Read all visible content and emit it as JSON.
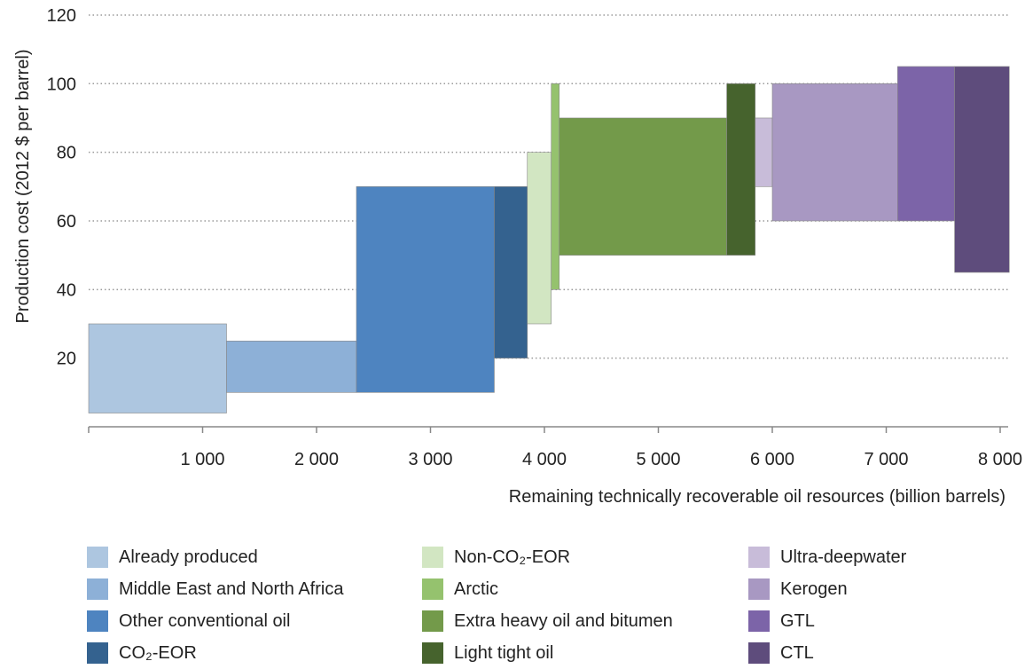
{
  "chart_data": {
    "type": "bar",
    "subtype": "supply-cost-curve",
    "title": "",
    "xlabel": "Remaining technically recoverable oil resources (billion barrels)",
    "ylabel": "Production cost  (2012 $ per barrel)",
    "xlim": [
      0,
      8100
    ],
    "ylim": [
      0,
      120
    ],
    "x_ticks": [
      {
        "value": 1000,
        "label": "1 000"
      },
      {
        "value": 2000,
        "label": "2 000"
      },
      {
        "value": 3000,
        "label": "3 000"
      },
      {
        "value": 4000,
        "label": "4 000"
      },
      {
        "value": 5000,
        "label": "5 000"
      },
      {
        "value": 6000,
        "label": "6 000"
      },
      {
        "value": 7000,
        "label": "7 000"
      },
      {
        "value": 8000,
        "label": "8 000"
      }
    ],
    "y_ticks": [
      {
        "value": 20,
        "label": "20"
      },
      {
        "value": 40,
        "label": "40"
      },
      {
        "value": 60,
        "label": "60"
      },
      {
        "value": 80,
        "label": "80"
      },
      {
        "value": 100,
        "label": "100"
      },
      {
        "value": 120,
        "label": "120"
      }
    ],
    "grid": "horizontal-dotted",
    "legend_position": "bottom",
    "series": [
      {
        "name": "Already produced",
        "color": "#adc6e0",
        "x_start": 0,
        "x_end": 1210,
        "y_low": 4,
        "y_high": 30
      },
      {
        "name": "Middle East and North Africa",
        "color": "#8db0d7",
        "x_start": 1210,
        "x_end": 2350,
        "y_low": 10,
        "y_high": 25
      },
      {
        "name": "Other conventional oil",
        "color": "#4e84c0",
        "x_start": 2350,
        "x_end": 3560,
        "y_low": 10,
        "y_high": 70
      },
      {
        "name": "CO₂-EOR",
        "color": "#34628f",
        "x_start": 3560,
        "x_end": 3850,
        "y_low": 20,
        "y_high": 70
      },
      {
        "name": "Non-CO₂-EOR",
        "color": "#d2e6c2",
        "x_start": 3850,
        "x_end": 4060,
        "y_low": 30,
        "y_high": 80
      },
      {
        "name": "Arctic",
        "color": "#95c26e",
        "x_start": 4060,
        "x_end": 4130,
        "y_low": 40,
        "y_high": 100
      },
      {
        "name": "Extra heavy oil and bitumen",
        "color": "#739a4a",
        "x_start": 4130,
        "x_end": 5600,
        "y_low": 50,
        "y_high": 90
      },
      {
        "name": "Light tight oil",
        "color": "#46632d",
        "x_start": 5600,
        "x_end": 5850,
        "y_low": 50,
        "y_high": 100
      },
      {
        "name": "Ultra-deepwater",
        "color": "#c8bcd9",
        "x_start": 5850,
        "x_end": 6000,
        "y_low": 70,
        "y_high": 90
      },
      {
        "name": "Kerogen",
        "color": "#a898c2",
        "x_start": 6000,
        "x_end": 7100,
        "y_low": 60,
        "y_high": 100
      },
      {
        "name": "GTL",
        "color": "#7c64a8",
        "x_start": 7100,
        "x_end": 7600,
        "y_low": 60,
        "y_high": 105
      },
      {
        "name": "CTL",
        "color": "#5e4c7c",
        "x_start": 7600,
        "x_end": 8080,
        "y_low": 45,
        "y_high": 105
      }
    ]
  }
}
